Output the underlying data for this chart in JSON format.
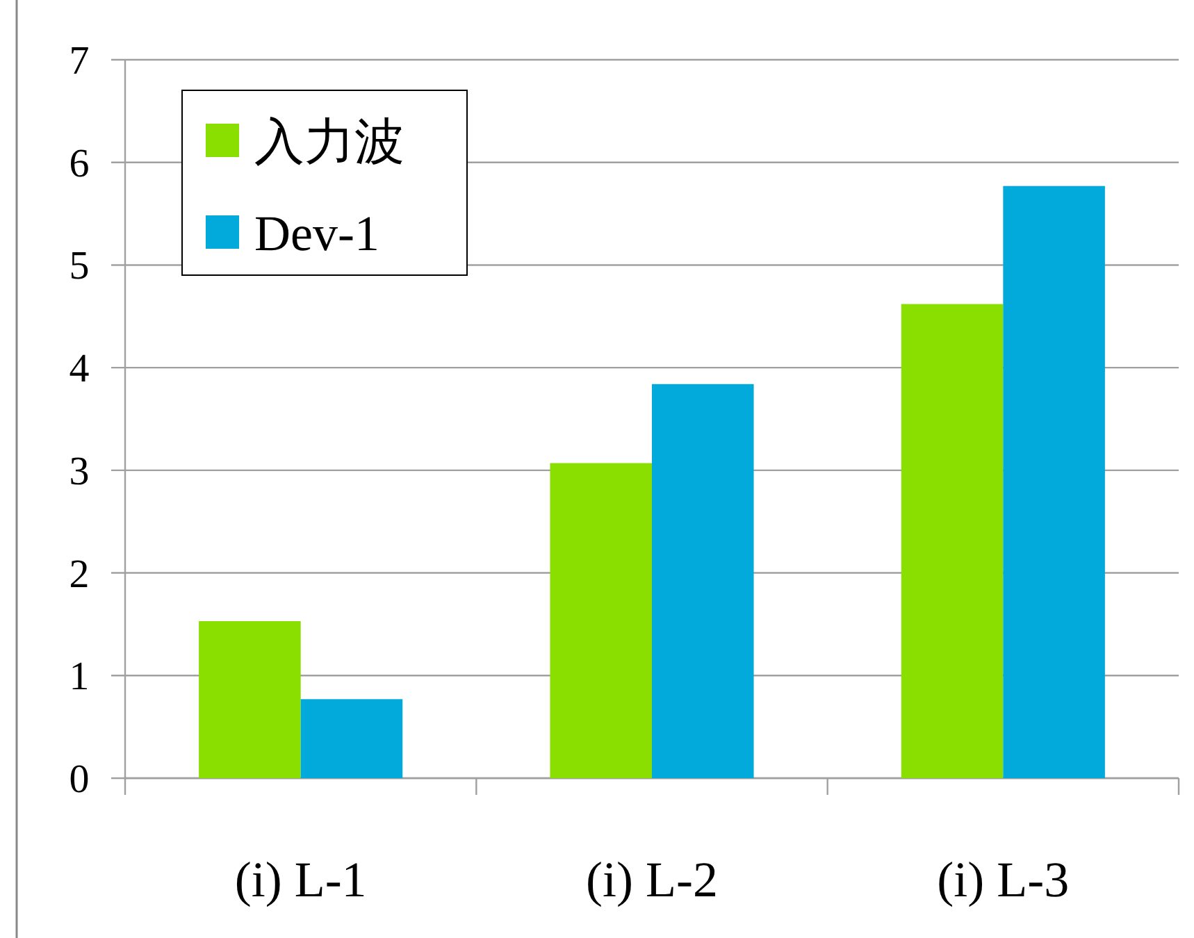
{
  "chart_data": {
    "type": "bar",
    "categories": [
      "(i) L-1",
      "(i) L-2",
      "(i) L-3"
    ],
    "series": [
      {
        "name": "入力波",
        "color": "#8ade00",
        "values": [
          1.53,
          3.07,
          4.62
        ]
      },
      {
        "name": "Dev-1",
        "color": "#02aadc",
        "values": [
          0.77,
          3.84,
          5.77
        ]
      }
    ],
    "ylim": [
      0,
      7
    ],
    "yticks": [
      0,
      1,
      2,
      3,
      4,
      5,
      6,
      7
    ],
    "grid": "y",
    "legend": "top left"
  }
}
